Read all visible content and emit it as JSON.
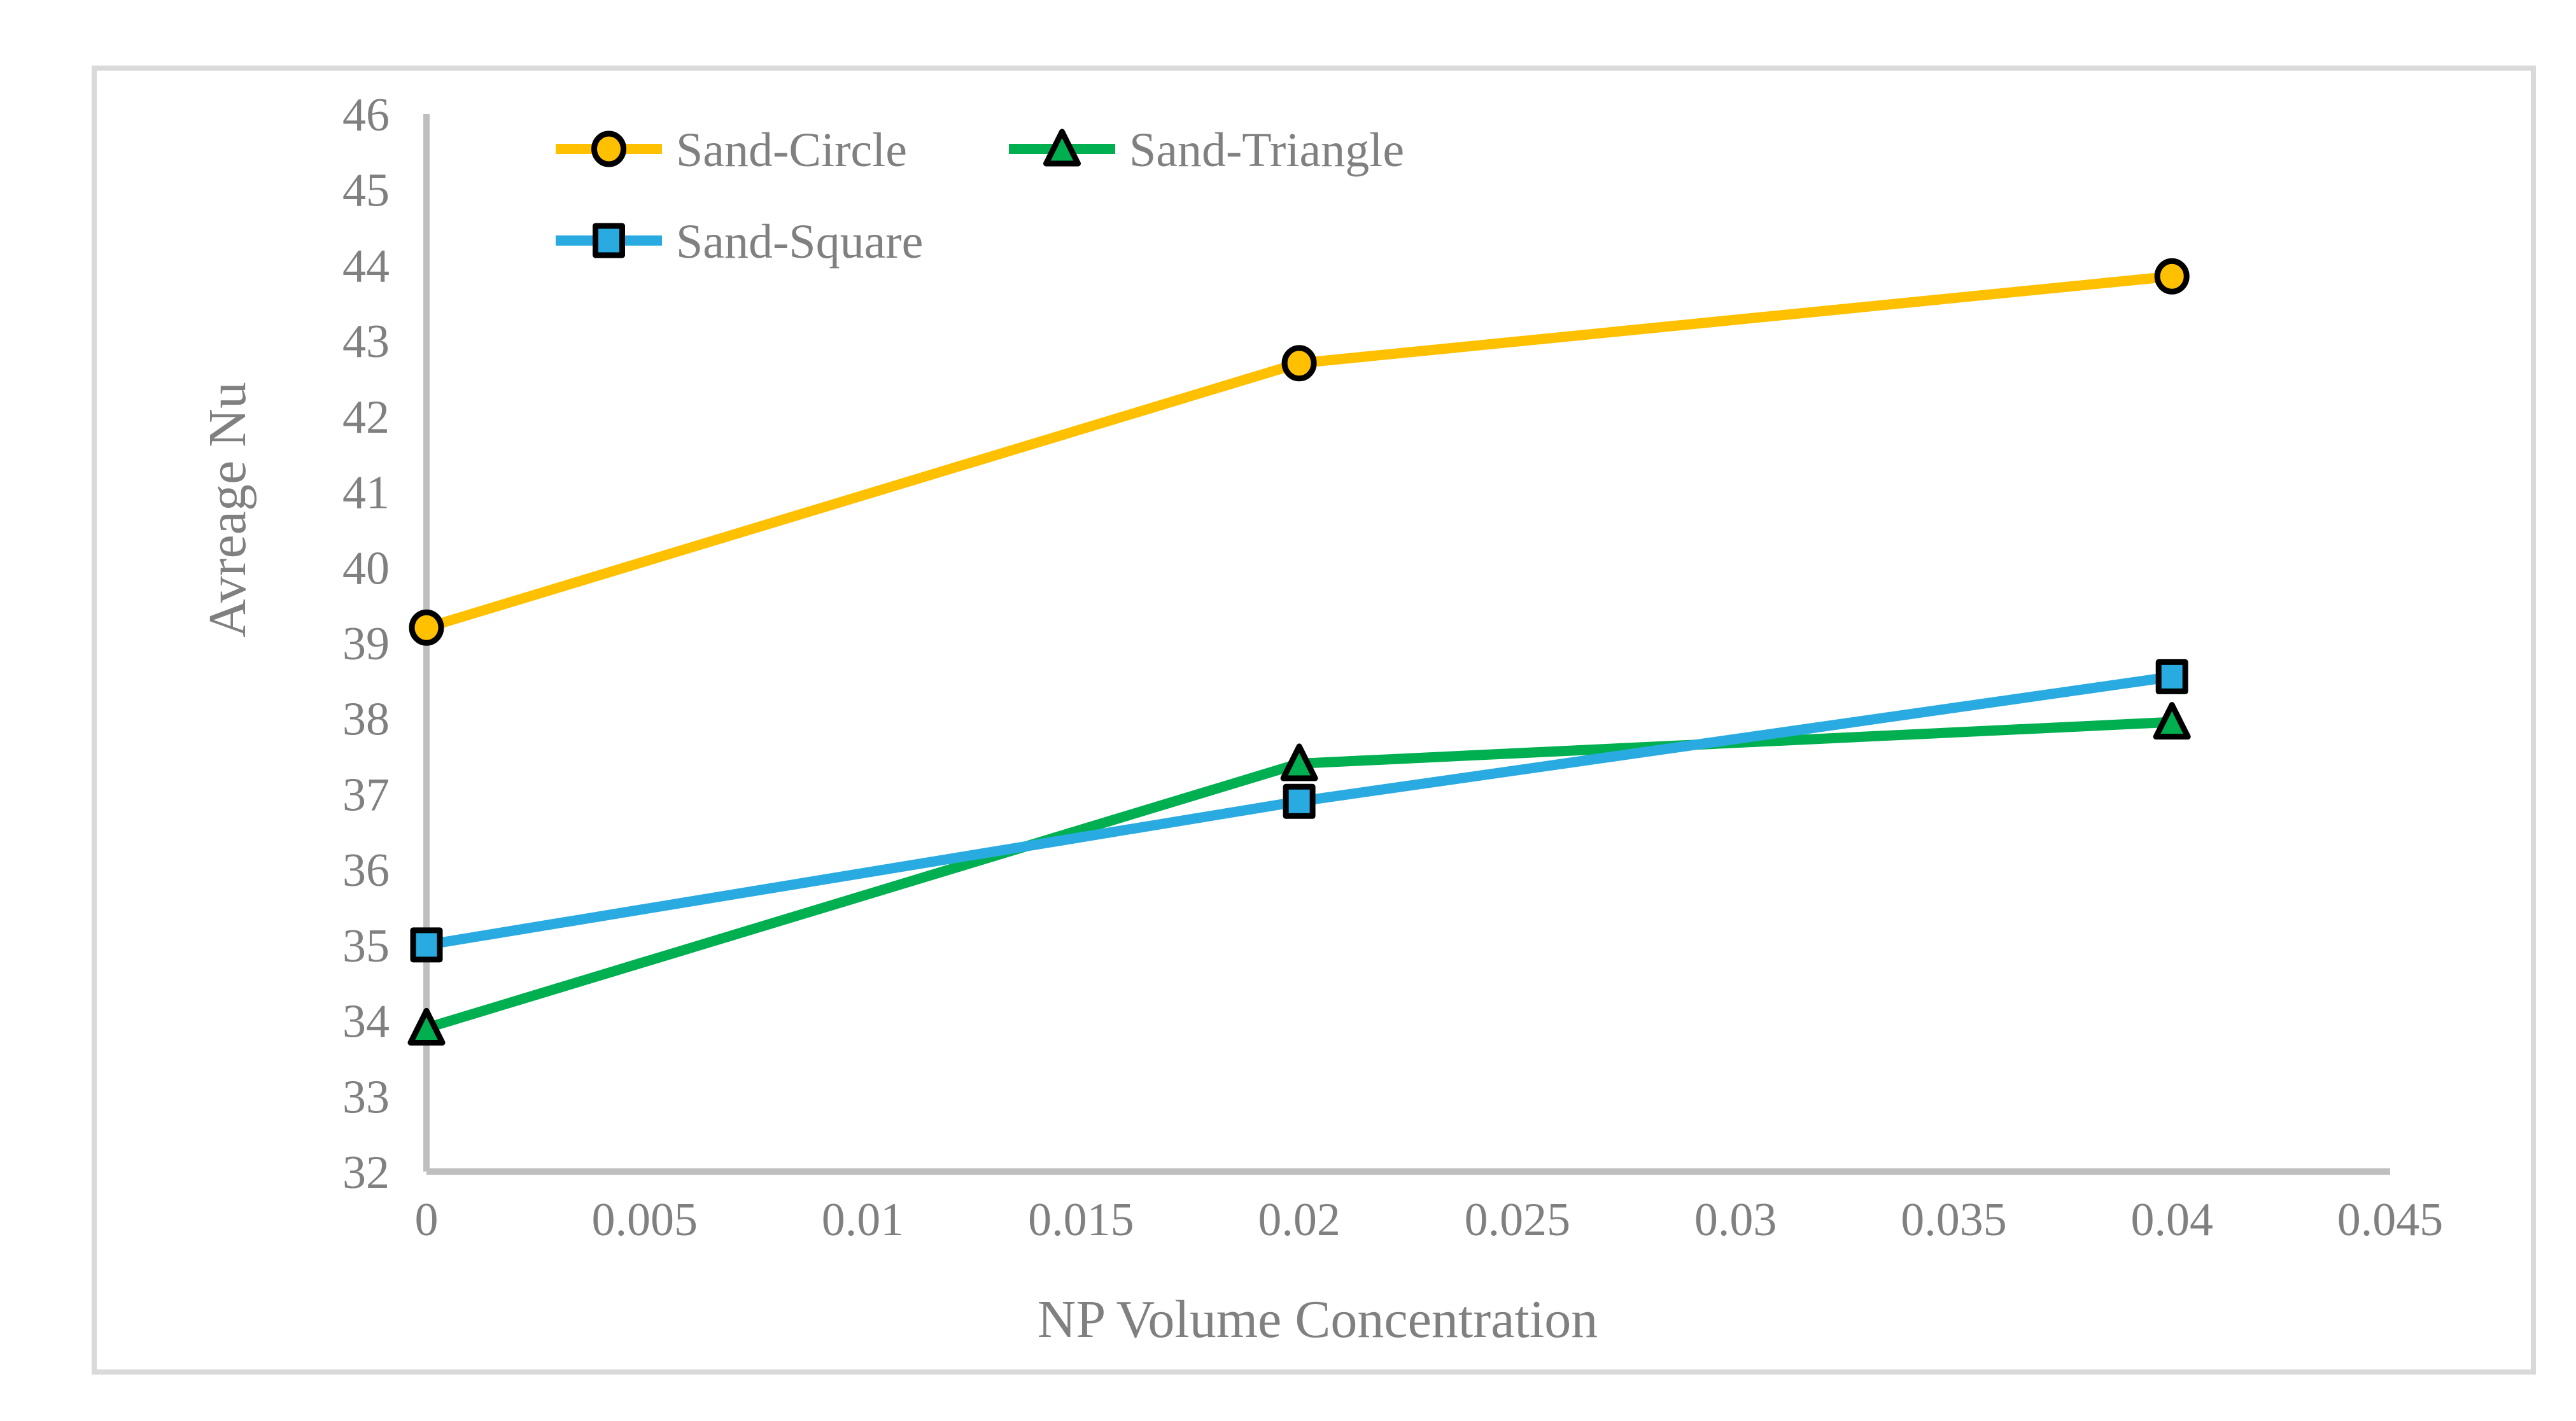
{
  "chart_data": {
    "type": "line",
    "x": [
      0,
      0.02,
      0.04
    ],
    "series": [
      {
        "name": "Sand-Circle",
        "marker": "circle",
        "color": "#FFC000",
        "values": [
          39.2,
          42.7,
          43.85
        ]
      },
      {
        "name": "Sand-Triangle",
        "marker": "triangle",
        "color": "#00B050",
        "values": [
          33.9,
          37.4,
          37.95
        ]
      },
      {
        "name": "Sand-Square",
        "marker": "square",
        "color": "#29ABE2",
        "values": [
          35.0,
          36.9,
          38.55
        ]
      }
    ],
    "xlabel": "NP Volume Concentration",
    "ylabel": "Avreage Nu",
    "xlim": [
      0,
      0.045
    ],
    "ylim": [
      32,
      46
    ],
    "x_ticks": [
      0,
      0.005,
      0.01,
      0.015,
      0.02,
      0.025,
      0.03,
      0.035,
      0.04,
      0.045
    ],
    "y_ticks": [
      32,
      33,
      34,
      35,
      36,
      37,
      38,
      39,
      40,
      41,
      42,
      43,
      44,
      45,
      46
    ],
    "grid": false,
    "legend": {
      "position": "top-left-inside",
      "items": [
        {
          "label": "Sand-Circle",
          "row": 0,
          "col": 0
        },
        {
          "label": "Sand-Triangle",
          "row": 0,
          "col": 1
        },
        {
          "label": "Sand-Square",
          "row": 1,
          "col": 0
        }
      ]
    }
  },
  "colors": {
    "axis_line": "#BFBFBF",
    "frame_border": "#D9D9D9",
    "text": "#808080",
    "marker_outline": "#000000",
    "background": "#FFFFFF"
  }
}
